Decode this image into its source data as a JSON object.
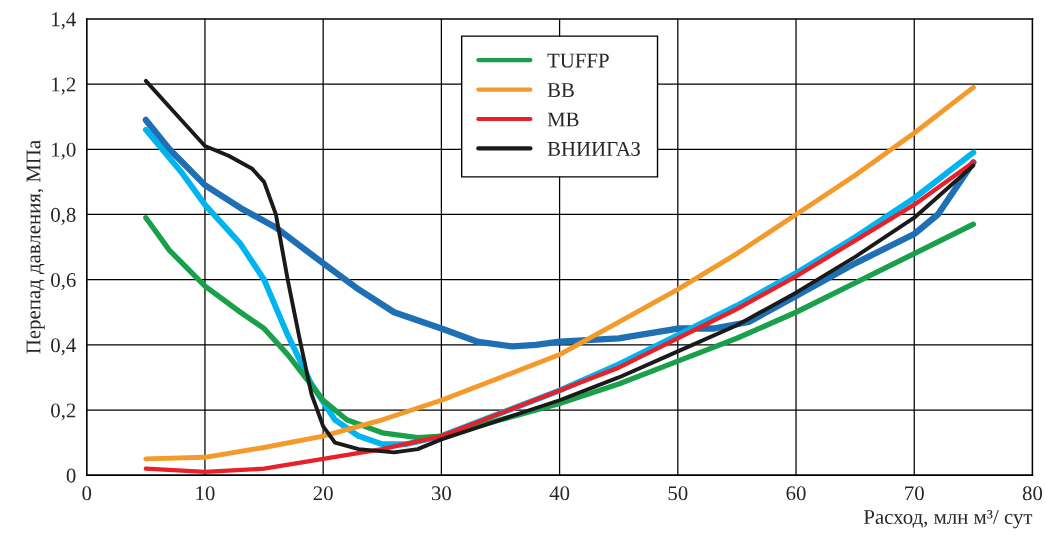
{
  "chart_data": {
    "type": "line",
    "xlabel": "Расход, млн м³/ сут",
    "ylabel": "Перепад давления, МПа",
    "xlim": [
      0,
      80
    ],
    "xticks": [
      0,
      10,
      20,
      30,
      40,
      50,
      60,
      70,
      80
    ],
    "ylim": [
      0,
      1.4
    ],
    "yticks": [
      0,
      {
        "value": 0.2,
        "label": "0,2"
      },
      {
        "value": 0.4,
        "label": "0,4"
      },
      {
        "value": 0.6,
        "label": "0,6"
      },
      {
        "value": 0.8,
        "label": "0,8"
      },
      {
        "value": 1.0,
        "label": "1,0"
      },
      {
        "value": 1.2,
        "label": "1,2"
      },
      {
        "value": 1.4,
        "label": "1,4"
      }
    ],
    "grid": true,
    "legend": "top",
    "marker": "none",
    "line_style": "solid",
    "series": [
      {
        "color": "#1f6fb5",
        "x": [
          5,
          7,
          10,
          13,
          16,
          20,
          23,
          26,
          30,
          33,
          36,
          38,
          40,
          45,
          50,
          53,
          56,
          60,
          65,
          70,
          72,
          75
        ],
        "values": [
          1.09,
          1.0,
          0.89,
          0.82,
          0.76,
          0.65,
          0.57,
          0.5,
          0.45,
          0.41,
          0.395,
          0.4,
          0.41,
          0.42,
          0.45,
          0.45,
          0.47,
          0.55,
          0.65,
          0.74,
          0.8,
          0.96
        ]
      },
      {
        "color": "#00b4f0",
        "x": [
          5,
          8,
          10,
          13,
          15,
          17,
          19,
          21,
          23,
          25,
          27,
          30,
          35,
          40,
          45,
          50,
          55,
          60,
          65,
          70,
          75
        ],
        "values": [
          1.06,
          0.93,
          0.83,
          0.71,
          0.6,
          0.43,
          0.28,
          0.17,
          0.12,
          0.095,
          0.095,
          0.12,
          0.19,
          0.26,
          0.34,
          0.43,
          0.52,
          0.62,
          0.73,
          0.85,
          0.99
        ]
      },
      {
        "name": "TUFFP",
        "color": "#1aa04a",
        "x": [
          5,
          7,
          10,
          13,
          15,
          17,
          20,
          22,
          25,
          28,
          30,
          35,
          40,
          45,
          50,
          55,
          60,
          65,
          70,
          75
        ],
        "values": [
          0.79,
          0.69,
          0.58,
          0.5,
          0.45,
          0.37,
          0.23,
          0.17,
          0.13,
          0.115,
          0.12,
          0.17,
          0.22,
          0.28,
          0.35,
          0.42,
          0.5,
          0.59,
          0.68,
          0.77
        ]
      },
      {
        "name": "BB",
        "color": "#f39a2b",
        "x": [
          5,
          10,
          15,
          20,
          25,
          30,
          35,
          40,
          45,
          50,
          55,
          60,
          65,
          70,
          75
        ],
        "values": [
          0.05,
          0.055,
          0.085,
          0.12,
          0.17,
          0.23,
          0.3,
          0.37,
          0.47,
          0.57,
          0.68,
          0.8,
          0.92,
          1.05,
          1.19
        ]
      },
      {
        "name": "MB",
        "color": "#e8202a",
        "x": [
          5,
          10,
          15,
          20,
          25,
          30,
          35,
          40,
          45,
          50,
          55,
          60,
          65,
          70,
          75
        ],
        "values": [
          0.02,
          0.01,
          0.02,
          0.05,
          0.08,
          0.12,
          0.19,
          0.26,
          0.33,
          0.42,
          0.51,
          0.61,
          0.72,
          0.83,
          0.96
        ]
      },
      {
        "name": "ВНИИГАЗ",
        "color": "#1a1a1a",
        "x": [
          5,
          8,
          10,
          12,
          14,
          15,
          16,
          17,
          18,
          19,
          20,
          21,
          23,
          26,
          28,
          30,
          35,
          40,
          45,
          50,
          55,
          60,
          65,
          70,
          75
        ],
        "values": [
          1.21,
          1.09,
          1.01,
          0.98,
          0.94,
          0.9,
          0.8,
          0.6,
          0.42,
          0.25,
          0.15,
          0.1,
          0.08,
          0.07,
          0.08,
          0.11,
          0.17,
          0.23,
          0.3,
          0.38,
          0.46,
          0.56,
          0.67,
          0.79,
          0.95
        ]
      }
    ]
  }
}
